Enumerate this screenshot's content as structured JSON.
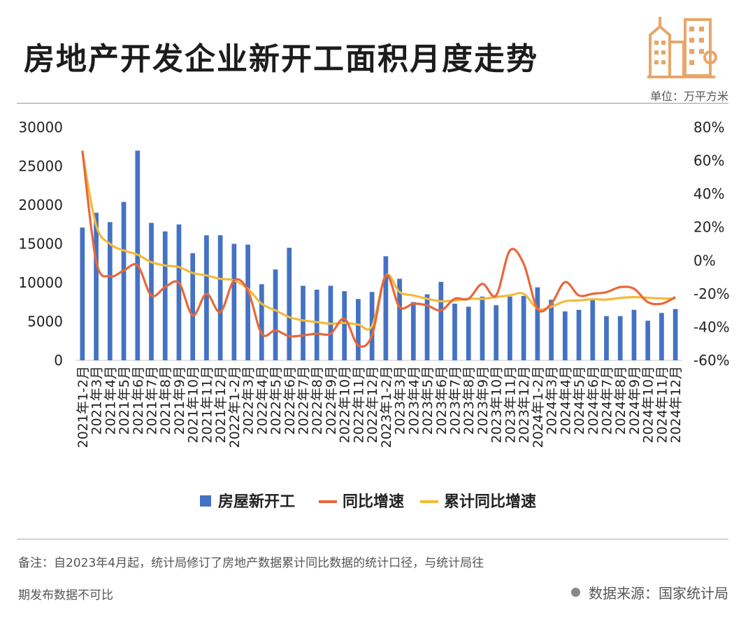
{
  "header": {
    "title": "房地产开发企业新开工面积月度走势",
    "unit": "单位：万平方米"
  },
  "footer": {
    "note_line1": "备注：自2023年4月起，统计局修订了房地产数据累计同比数据的统计口径，与统计局往",
    "note_line2": "期发布数据不可比",
    "source": "数据来源：国家统计局"
  },
  "colors": {
    "bar": "#4472C4",
    "yoy": "#E8673A",
    "cum_yoy": "#F2BA3A",
    "logo": "#E8A66A"
  },
  "icons": {
    "logo": "building-logo-icon",
    "source_dot": "dot-icon"
  },
  "chart_data": {
    "type": "bar",
    "categories": [
      "2021年1-2月",
      "2021年3月",
      "2021年4月",
      "2021年5月",
      "2021年6月",
      "2021年7月",
      "2021年8月",
      "2021年9月",
      "2021年10月",
      "2021年11月",
      "2021年12月",
      "2022年1-2月",
      "2022年3月",
      "2022年4月",
      "2022年5月",
      "2022年6月",
      "2022年7月",
      "2022年8月",
      "2022年9月",
      "2022年10月",
      "2022年11月",
      "2022年12月",
      "2023年1-2月",
      "2023年3月",
      "2023年4月",
      "2023年5月",
      "2023年6月",
      "2023年7月",
      "2023年8月",
      "2023年9月",
      "2023年10月",
      "2023年11月",
      "2023年12月",
      "2024年1-2月",
      "2024年3月",
      "2024年4月",
      "2024年5月",
      "2024年6月",
      "2024年7月",
      "2024年8月",
      "2024年9月",
      "2024年10月",
      "2024年11月",
      "2024年12月"
    ],
    "series": [
      {
        "name": "房屋新开工",
        "type": "bar",
        "axis": "left",
        "values": [
          17100,
          19000,
          17800,
          20400,
          27000,
          17700,
          16600,
          17500,
          13800,
          16100,
          16100,
          15000,
          14900,
          9800,
          11700,
          14500,
          9600,
          9100,
          9600,
          8900,
          7900,
          8800,
          13400,
          10500,
          7500,
          8500,
          10100,
          7300,
          6900,
          8200,
          7100,
          8200,
          8300,
          9400,
          7800,
          6300,
          6500,
          7900,
          5700,
          5700,
          6500,
          5100,
          6100,
          6600
        ]
      },
      {
        "name": "同比增速",
        "type": "line",
        "axis": "right",
        "values": [
          66,
          -0.5,
          -9.5,
          -6,
          -3,
          -21,
          -16,
          -13.5,
          -33,
          -20,
          -31,
          -12,
          -18,
          -44,
          -42,
          -45.5,
          -45,
          -44,
          -44,
          -35,
          -51,
          -45,
          -9,
          -28,
          -26,
          -27,
          -30,
          -23,
          -23,
          -14,
          -21,
          6,
          -2,
          -29,
          -26,
          -13,
          -21,
          -20,
          -19,
          -16,
          -17,
          -25,
          -26,
          -22
        ]
      },
      {
        "name": "累计同比增速",
        "type": "line",
        "axis": "right",
        "values": [
          65,
          21,
          10,
          6,
          3.5,
          -1,
          -3,
          -4,
          -7.5,
          -9,
          -11,
          -12,
          -17,
          -26,
          -30,
          -34,
          -36,
          -37,
          -38,
          -37.5,
          -38.5,
          -39.5,
          -9,
          -19,
          -21,
          -23,
          -24.5,
          -24,
          -23,
          -23,
          -22,
          -21,
          -20,
          -29,
          -27.8,
          -24.5,
          -24,
          -23.3,
          -23.5,
          -22.5,
          -22,
          -22.4,
          -22.8,
          -23
        ]
      }
    ],
    "y_left": {
      "min": 0,
      "max": 30000,
      "ticks": [
        "0",
        "5000",
        "10000",
        "15000",
        "20000",
        "25000",
        "30000"
      ]
    },
    "y_right": {
      "min": -60,
      "max": 80,
      "ticks": [
        "-60%",
        "-40%",
        "-20%",
        "0%",
        "20%",
        "40%",
        "60%",
        "80%"
      ]
    },
    "legend": {
      "position": "bottom",
      "items": [
        "房屋新开工",
        "同比增速",
        "累计同比增速"
      ]
    },
    "grid": false
  }
}
